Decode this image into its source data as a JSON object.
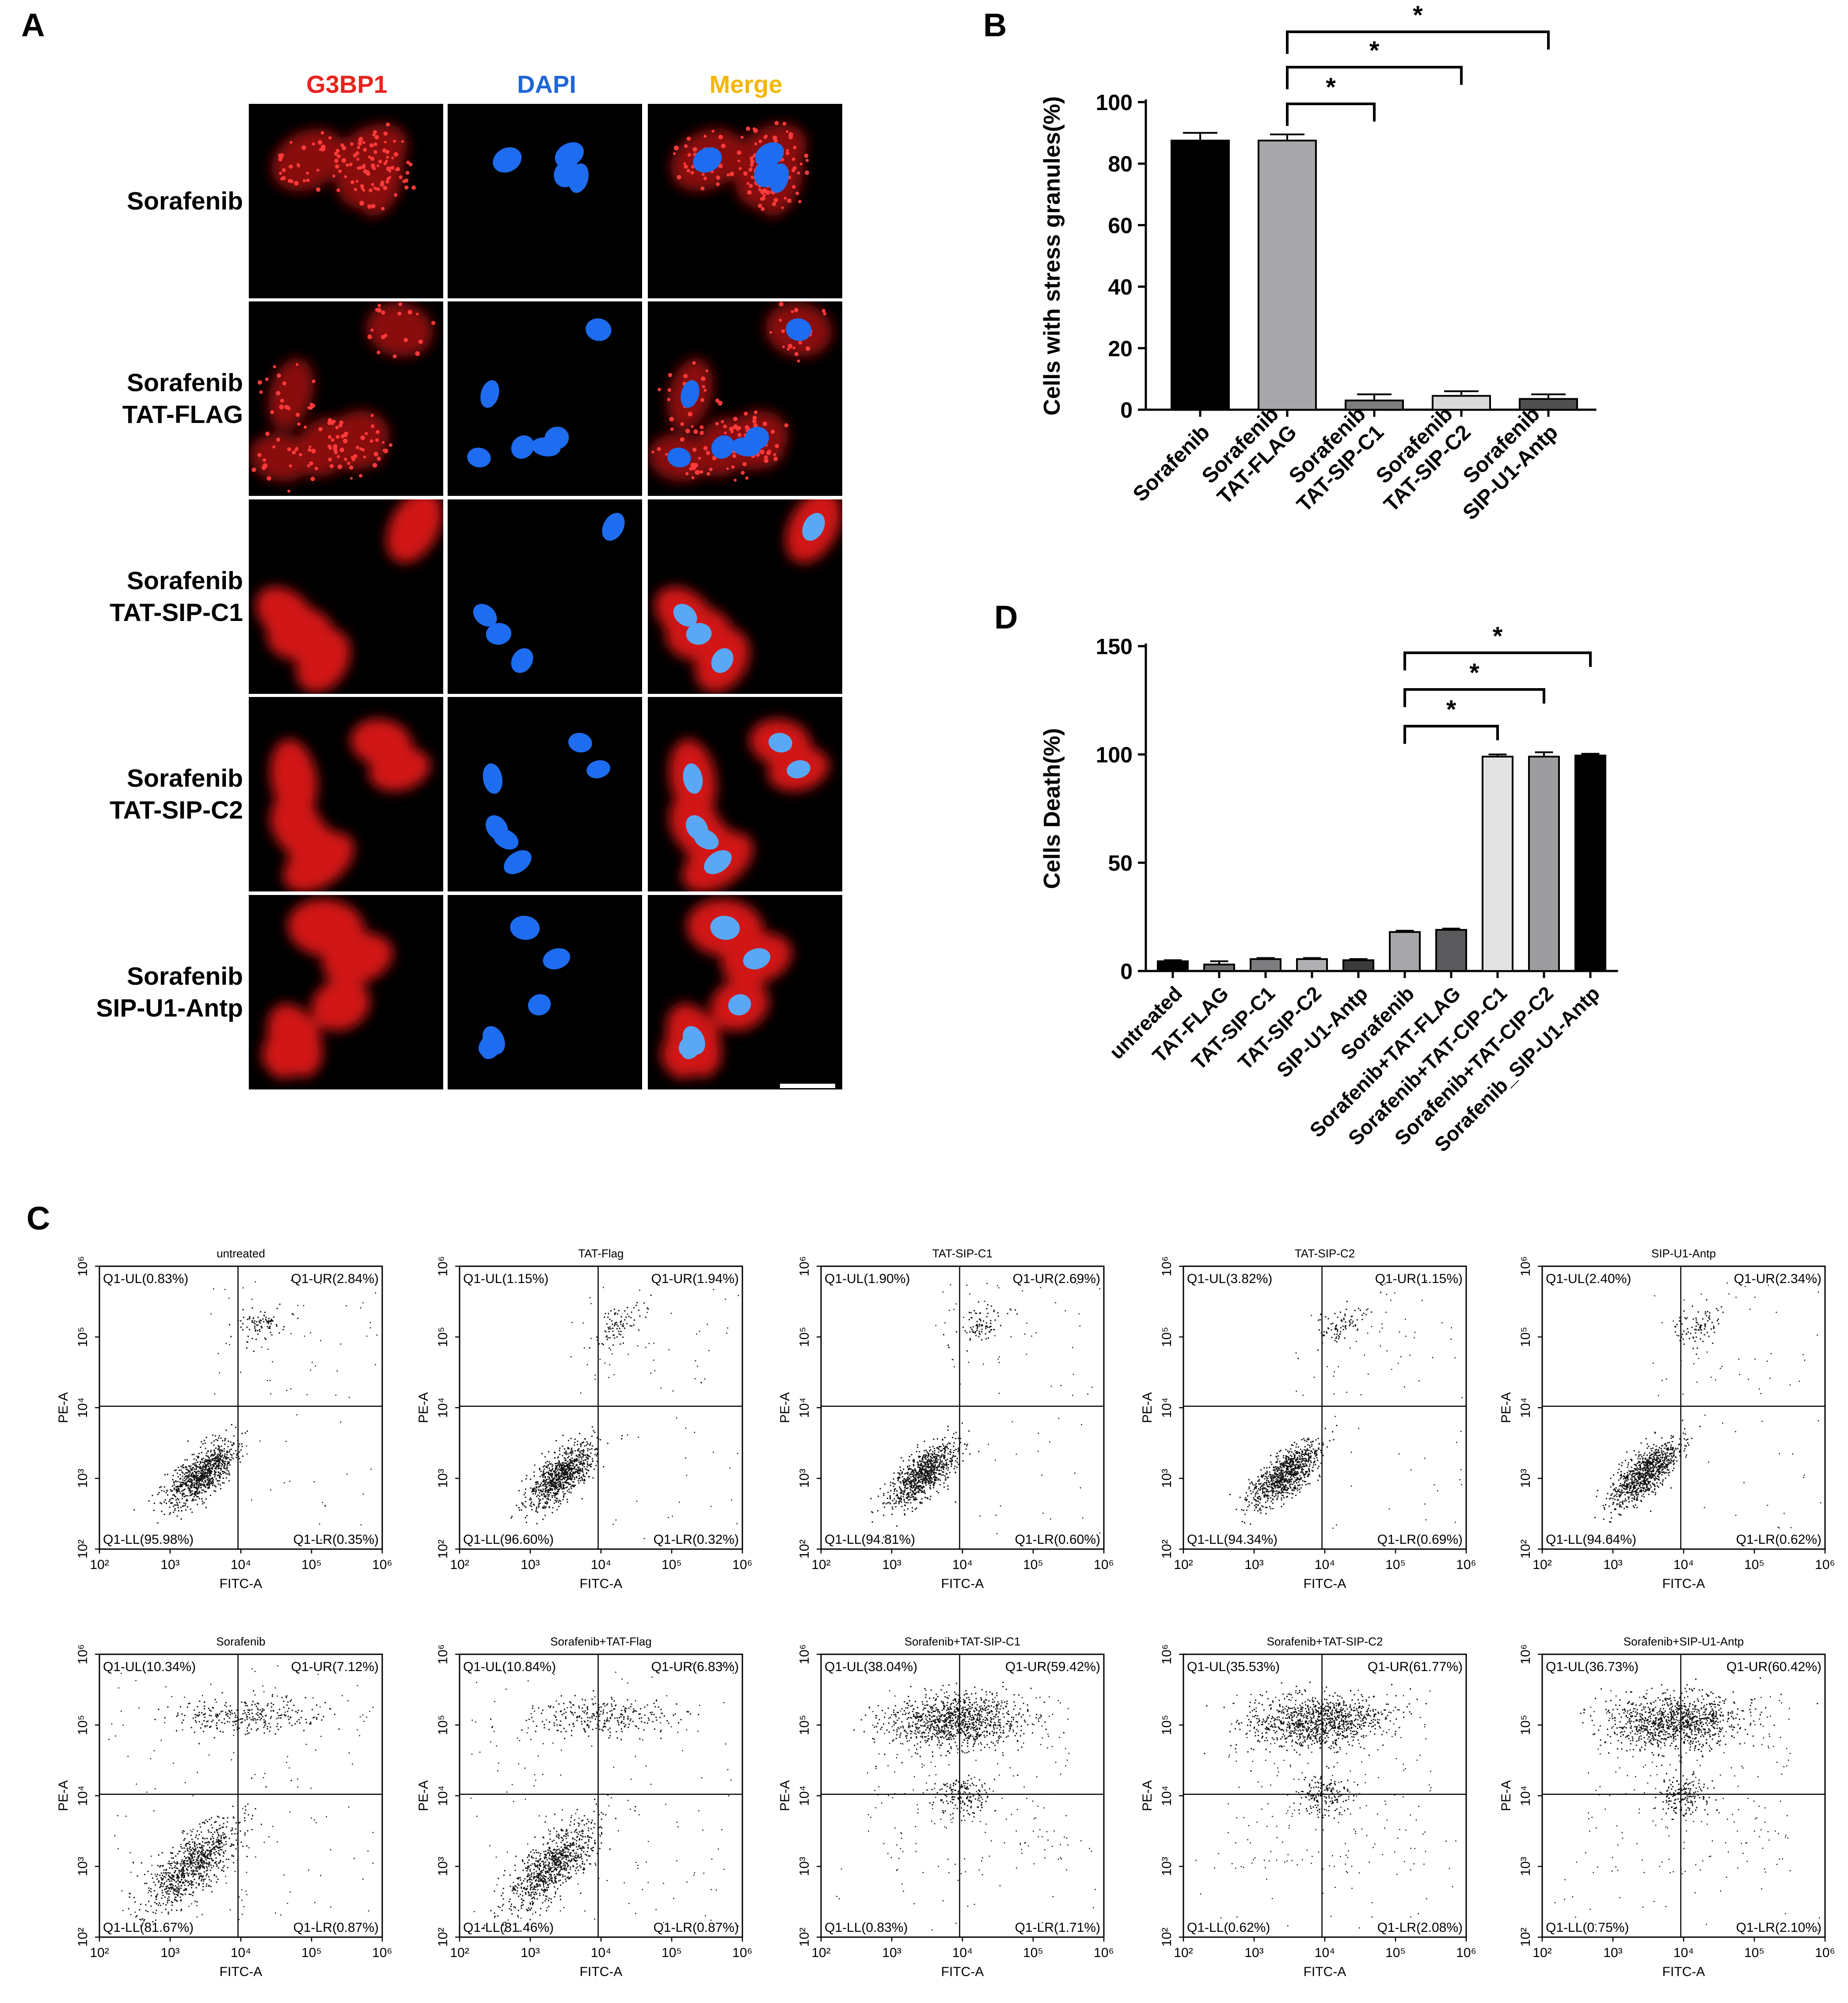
{
  "panels": {
    "a": "A",
    "b": "B",
    "c": "C",
    "d": "D"
  },
  "panel_a": {
    "columns": [
      {
        "label": "G3BP1",
        "color": "#e8231e"
      },
      {
        "label": "DAPI",
        "color": "#1f66d6"
      },
      {
        "label": "Merge",
        "color": "#f2b705"
      }
    ],
    "rows": [
      {
        "line1": "Sorafenib",
        "line2": "",
        "pattern": "granules"
      },
      {
        "line1": "Sorafenib",
        "line2": "TAT-FLAG",
        "pattern": "granules"
      },
      {
        "line1": "Sorafenib",
        "line2": "TAT-SIP-C1",
        "pattern": "diffuse"
      },
      {
        "line1": "Sorafenib",
        "line2": "TAT-SIP-C2",
        "pattern": "diffuse"
      },
      {
        "line1": "Sorafenib",
        "line2": "SIP-U1-Antp",
        "pattern": "diffuse"
      }
    ]
  },
  "chart_data": [
    {
      "panel": "B",
      "type": "bar",
      "ylabel": "Cells with stress granules(%)",
      "ylim": [
        0,
        100
      ],
      "yticks": [
        0,
        20,
        40,
        60,
        80,
        100
      ],
      "categories": [
        [
          "Sorafenib"
        ],
        [
          "Sorafenib",
          "TAT-FLAG"
        ],
        [
          "Sorafenib",
          "TAT-SIP-C1"
        ],
        [
          "Sorafenib",
          "TAT-SIP-C2"
        ],
        [
          "Sorafenib",
          "SIP-U1-Antp"
        ]
      ],
      "values": [
        87.5,
        87.5,
        3,
        4.5,
        3.5
      ],
      "errors": [
        2.5,
        2,
        2,
        1.5,
        1.5
      ],
      "colors": [
        "#000000",
        "#a7a7a9",
        "#7d7d7f",
        "#d9d9d9",
        "#505050"
      ],
      "significance": [
        {
          "from": 1,
          "to": 2,
          "label": "*"
        },
        {
          "from": 1,
          "to": 3,
          "label": "*"
        },
        {
          "from": 1,
          "to": 4,
          "label": "*"
        }
      ],
      "grid": false
    },
    {
      "panel": "D",
      "type": "bar",
      "ylabel": "Cells Death(%)",
      "ylim": [
        0,
        150
      ],
      "yticks": [
        0,
        50,
        100,
        150
      ],
      "categories": [
        "untreated",
        "TAT-FLAG",
        "TAT-SIP-C1",
        "TAT-SIP-C2",
        "SIP-U1-Antp",
        "Sorafenib",
        "Sorafenib+TAT-FLAG",
        "Sorafenib+TAT-CIP-C1",
        "Sorafenib+TAT-CIP-C2",
        "Sorafenib_SIP-U1-Antp"
      ],
      "values": [
        4.5,
        3,
        5.5,
        5.5,
        5,
        18,
        19,
        99,
        99,
        99.5
      ],
      "errors": [
        0.5,
        1.5,
        0.5,
        0.5,
        0.5,
        0.6,
        0.6,
        1,
        2,
        0.8
      ],
      "colors": [
        "#000000",
        "#6e6e70",
        "#7d7d7f",
        "#b0b0b2",
        "#3a3a3a",
        "#a7a7a9",
        "#5a5a5c",
        "#e3e3e3",
        "#9d9d9f",
        "#000000"
      ],
      "significance": [
        {
          "from": 5,
          "to": 7,
          "label": "*"
        },
        {
          "from": 5,
          "to": 8,
          "label": "*"
        },
        {
          "from": 5,
          "to": 9,
          "label": "*"
        }
      ],
      "grid": false
    },
    {
      "panel": "C",
      "type": "scatter",
      "xlabel": "FITC-A",
      "ylabel": "PE-A",
      "axis_scale": "log",
      "xticks": [
        "10²",
        "10³",
        "10⁴",
        "10⁵",
        "10⁶"
      ],
      "yticks": [
        "10²",
        "10³",
        "10⁴",
        "10⁵",
        "10⁶"
      ],
      "plots": [
        {
          "title": "untreated",
          "UL": "Q1-UL(0.83%)",
          "UR": "Q1-UR(2.84%)",
          "LL": "Q1-LL(95.98%)",
          "LR": "Q1-LR(0.35%)",
          "fractions": {
            "UL": 0.83,
            "UR": 2.84,
            "LL": 95.98,
            "LR": 0.35
          },
          "style": "untreated"
        },
        {
          "title": "TAT-Flag",
          "UL": "Q1-UL(1.15%)",
          "UR": "Q1-UR(1.94%)",
          "LL": "Q1-LL(96.60%)",
          "LR": "Q1-LR(0.32%)",
          "fractions": {
            "UL": 1.15,
            "UR": 1.94,
            "LL": 96.6,
            "LR": 0.32
          },
          "style": "untreated"
        },
        {
          "title": "TAT-SIP-C1",
          "UL": "Q1-UL(1.90%)",
          "UR": "Q1-UR(2.69%)",
          "LL": "Q1-LL(94.81%)",
          "LR": "Q1-LR(0.60%)",
          "fractions": {
            "UL": 1.9,
            "UR": 2.69,
            "LL": 94.81,
            "LR": 0.6
          },
          "style": "untreated"
        },
        {
          "title": "TAT-SIP-C2",
          "UL": "Q1-UL(3.82%)",
          "UR": "Q1-UR(1.15%)",
          "LL": "Q1-LL(94.34%)",
          "LR": "Q1-LR(0.69%)",
          "fractions": {
            "UL": 3.82,
            "UR": 1.15,
            "LL": 94.34,
            "LR": 0.69
          },
          "style": "untreated"
        },
        {
          "title": "SIP-U1-Antp",
          "UL": "Q1-UL(2.40%)",
          "UR": "Q1-UR(2.34%)",
          "LL": "Q1-LL(94.64%)",
          "LR": "Q1-LR(0.62%)",
          "fractions": {
            "UL": 2.4,
            "UR": 2.34,
            "LL": 94.64,
            "LR": 0.62
          },
          "style": "untreated"
        },
        {
          "title": "Sorafenib",
          "UL": "Q1-UL(10.34%)",
          "UR": "Q1-UR(7.12%)",
          "LL": "Q1-LL(81.67%)",
          "LR": "Q1-LR(0.87%)",
          "fractions": {
            "UL": 10.34,
            "UR": 7.12,
            "LL": 81.67,
            "LR": 0.87
          },
          "style": "sorafenib"
        },
        {
          "title": "Sorafenib+TAT-Flag",
          "UL": "Q1-UL(10.84%)",
          "UR": "Q1-UR(6.83%)",
          "LL": "Q1-LL(81.46%)",
          "LR": "Q1-LR(0.87%)",
          "fractions": {
            "UL": 10.84,
            "UR": 6.83,
            "LL": 81.46,
            "LR": 0.87
          },
          "style": "sorafenib"
        },
        {
          "title": "Sorafenib+TAT-SIP-C1",
          "UL": "Q1-UL(38.04%)",
          "UR": "Q1-UR(59.42%)",
          "LL": "Q1-LL(0.83%)",
          "LR": "Q1-LR(1.71%)",
          "fractions": {
            "UL": 38.04,
            "UR": 59.42,
            "LL": 0.83,
            "LR": 1.71
          },
          "style": "dead"
        },
        {
          "title": "Sorafenib+TAT-SIP-C2",
          "UL": "Q1-UL(35.53%)",
          "UR": "Q1-UR(61.77%)",
          "LL": "Q1-LL(0.62%)",
          "LR": "Q1-LR(2.08%)",
          "fractions": {
            "UL": 35.53,
            "UR": 61.77,
            "LL": 0.62,
            "LR": 2.08
          },
          "style": "dead"
        },
        {
          "title": "Sorafenib+SIP-U1-Antp",
          "UL": "Q1-UL(36.73%)",
          "UR": "Q1-UR(60.42%)",
          "LL": "Q1-LL(0.75%)",
          "LR": "Q1-LR(2.10%)",
          "fractions": {
            "UL": 36.73,
            "UR": 60.42,
            "LL": 0.75,
            "LR": 2.1
          },
          "style": "dead"
        }
      ]
    }
  ]
}
